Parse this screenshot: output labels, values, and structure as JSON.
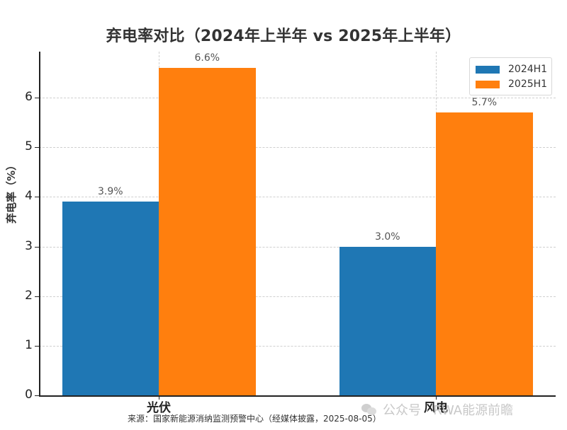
{
  "chart_data": {
    "type": "bar",
    "title": "弃电率对比（2024年上半年 vs 2025年上半年）",
    "xlabel": "",
    "ylabel": "弃电率（%）",
    "categories": [
      "光伏",
      "风电"
    ],
    "series": [
      {
        "name": "2024H1",
        "color": "#1f77b4",
        "values": [
          3.9,
          3.0
        ],
        "labels": [
          "3.9%",
          "3.0%"
        ]
      },
      {
        "name": "2025H1",
        "color": "#ff7f0e",
        "values": [
          6.6,
          5.7
        ],
        "labels": [
          "6.6%",
          "5.7%"
        ]
      }
    ],
    "ylim": [
      0,
      6.93
    ],
    "yticks": [
      0,
      1,
      2,
      3,
      4,
      5,
      6
    ],
    "grid": true,
    "legend_position": "upper right"
  },
  "footer": {
    "source": "来源：国家新能源消纳监测预警中心（经媒体披露，2025-08-05）",
    "watermark": "公众号 · RWA能源前瞻"
  }
}
